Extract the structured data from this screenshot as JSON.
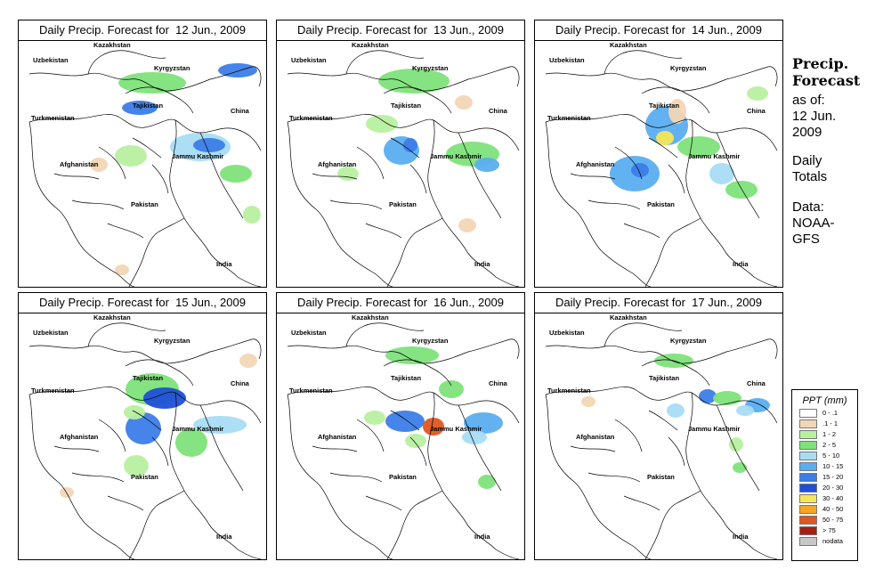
{
  "panels": [
    {
      "title": "Daily Precip. Forecast for  12 Jun., 2009"
    },
    {
      "title": "Daily Precip. Forecast for  13 Jun., 2009"
    },
    {
      "title": "Daily Precip. Forecast for  14 Jun., 2009"
    },
    {
      "title": "Daily Precip. Forecast for  15 Jun., 2009"
    },
    {
      "title": "Daily Precip. Forecast for  16 Jun., 2009"
    },
    {
      "title": "Daily Precip. Forecast for  17 Jun., 2009"
    }
  ],
  "map_labels": {
    "uzbekistan": "Uzbekistan",
    "kazakhstan": "Kazakhstan",
    "kyrgyzstan": "Kyrgyzstan",
    "tajikistan": "Tajikistan",
    "turkmenistan": "Turkmenistan",
    "china": "China",
    "afghanistan": "Afghanistan",
    "jammu_kashmir": "Jammu Kashmir",
    "pakistan": "Pakistan",
    "india": "India"
  },
  "sidebar": {
    "title_line1": "Precip.",
    "title_line2": "Forecast",
    "asof_line1": "as of:",
    "asof_line2": "12 Jun.",
    "asof_line3": "2009",
    "totals_line1": "Daily",
    "totals_line2": "Totals",
    "data_line1": "Data:",
    "data_line2": "NOAA-",
    "data_line3": "GFS"
  },
  "legend": {
    "title": "PPT (mm)",
    "items": [
      {
        "label": "0 - .1",
        "color": "#ffffff"
      },
      {
        "label": ".1 - 1",
        "color": "#f2d6b5"
      },
      {
        "label": "1 - 2",
        "color": "#b8f0a0"
      },
      {
        "label": "2 - 5",
        "color": "#7ee37a"
      },
      {
        "label": "5 - 10",
        "color": "#a8dcf5"
      },
      {
        "label": "10 - 15",
        "color": "#5aaef0"
      },
      {
        "label": "15 - 20",
        "color": "#3c7de8"
      },
      {
        "label": "20 - 30",
        "color": "#1f4fd6"
      },
      {
        "label": "30 - 40",
        "color": "#f7e65a"
      },
      {
        "label": "40 - 50",
        "color": "#f5a623"
      },
      {
        "label": "50 - 75",
        "color": "#e0561f"
      },
      {
        "label": "> 75",
        "color": "#a61d12"
      },
      {
        "label": "nodata",
        "color": "#c8c8c8"
      }
    ]
  }
}
